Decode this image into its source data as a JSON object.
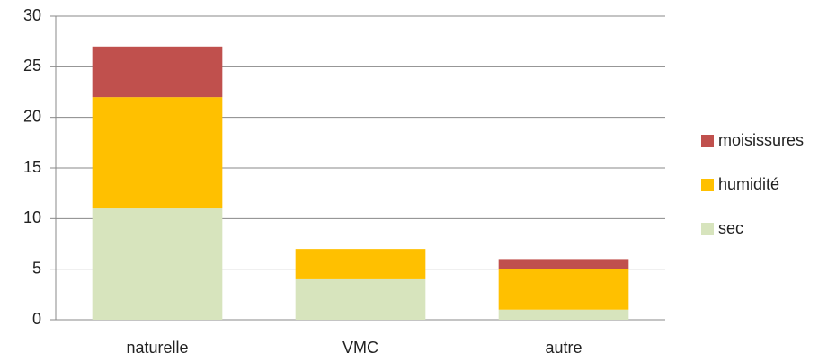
{
  "chart_data": {
    "type": "stacked_bar",
    "categories": [
      "naturelle",
      "VMC",
      "autre"
    ],
    "series": [
      {
        "name": "sec",
        "color": "#d7e4bd",
        "values": [
          11,
          4,
          1
        ]
      },
      {
        "name": "humidité",
        "color": "#ffc000",
        "values": [
          11,
          3,
          4
        ]
      },
      {
        "name": "moisissures",
        "color": "#c0504d",
        "values": [
          5,
          0,
          1
        ]
      }
    ],
    "ylim": [
      0,
      30
    ],
    "yticks": [
      0,
      5,
      10,
      15,
      20,
      25,
      30
    ],
    "grid": true,
    "legend": "right"
  }
}
